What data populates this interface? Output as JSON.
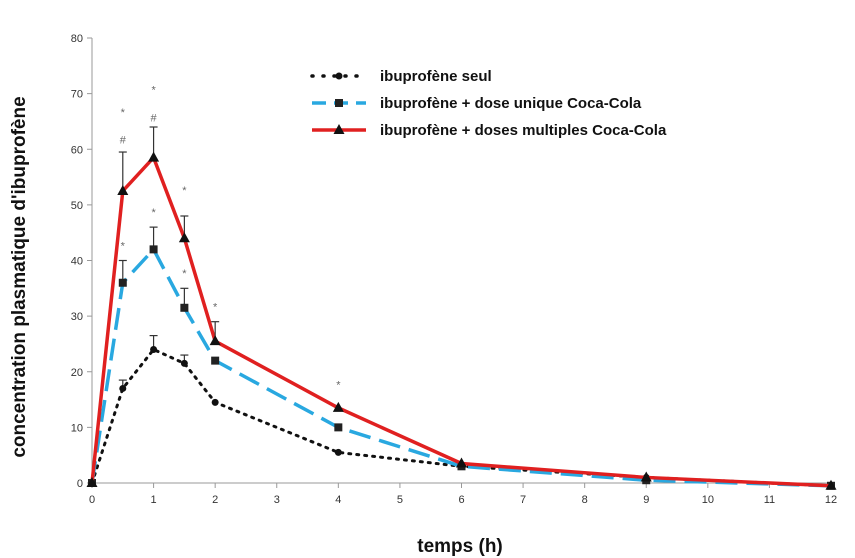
{
  "chart_data": {
    "type": "line",
    "xlabel": "temps (h)",
    "ylabel": "concentration plasmatique d'ibuprofène",
    "xlim": [
      0,
      12
    ],
    "ylim": [
      0,
      80
    ],
    "xticks": [
      "0",
      "1",
      "2",
      "3",
      "4",
      "5",
      "6",
      "7",
      "8",
      "9",
      "10",
      "11",
      "12"
    ],
    "yticks": [
      "0",
      "10",
      "20",
      "30",
      "40",
      "50",
      "60",
      "70",
      "80"
    ],
    "grid": false,
    "legend_position": "top-right",
    "series": [
      {
        "name": "ibuprofène seul",
        "color": "#111111",
        "dash": "dotted",
        "marker": "circle",
        "x": [
          0,
          0.5,
          1,
          1.5,
          2,
          4,
          6,
          9,
          12
        ],
        "y": [
          0,
          17,
          24,
          21.5,
          14.5,
          5.5,
          3,
          1,
          -0.5
        ],
        "err": [
          0,
          1.5,
          2.5,
          1.5,
          0,
          0,
          0,
          0,
          0
        ]
      },
      {
        "name": "ibuprofène + dose unique Coca-Cola",
        "color": "#29a8e0",
        "dash": "dashed",
        "marker": "square",
        "x": [
          0,
          0.5,
          1,
          1.5,
          2,
          4,
          6,
          9,
          12
        ],
        "y": [
          0,
          36,
          42,
          31.5,
          22,
          10,
          3,
          0.5,
          -0.5
        ],
        "err": [
          0,
          4,
          4,
          3.5,
          0,
          0,
          0,
          0,
          0
        ]
      },
      {
        "name": "ibuprofène + doses multiples Coca-Cola",
        "color": "#e02020",
        "dash": "solid",
        "marker": "triangle",
        "x": [
          0,
          0.5,
          1,
          1.5,
          2,
          4,
          6,
          9,
          12
        ],
        "y": [
          0,
          52.5,
          58.5,
          44,
          25.5,
          13.5,
          3.5,
          1,
          -0.5
        ],
        "err": [
          0,
          7,
          5.5,
          4,
          3.5,
          0,
          0,
          0,
          0
        ]
      }
    ],
    "annotations": [
      {
        "text": "*",
        "x": 0.5,
        "y": 66
      },
      {
        "text": "#",
        "x": 0.5,
        "y": 61
      },
      {
        "text": "*",
        "x": 0.5,
        "y": 42
      },
      {
        "text": "*",
        "x": 1,
        "y": 70
      },
      {
        "text": "#",
        "x": 1,
        "y": 65
      },
      {
        "text": "*",
        "x": 1,
        "y": 48
      },
      {
        "text": "*",
        "x": 1.5,
        "y": 52
      },
      {
        "text": "*",
        "x": 1.5,
        "y": 37
      },
      {
        "text": "*",
        "x": 2,
        "y": 31
      },
      {
        "text": "*",
        "x": 4,
        "y": 17
      }
    ]
  }
}
